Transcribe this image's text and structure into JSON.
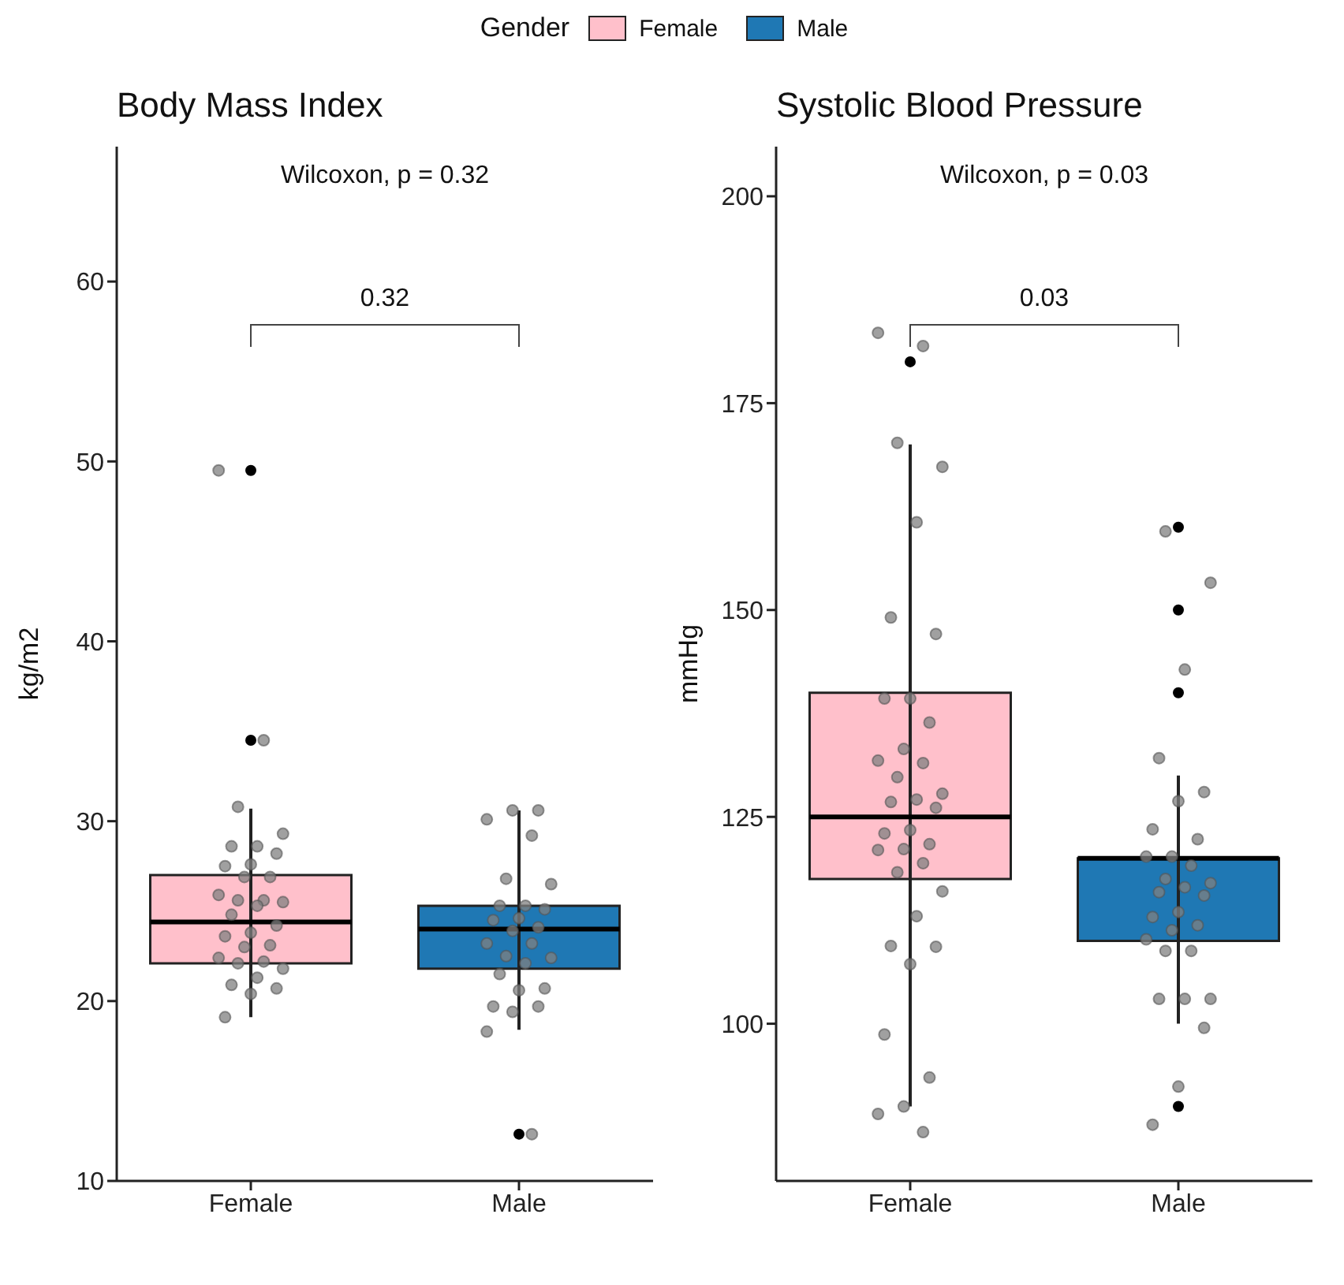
{
  "chart_data": [
    {
      "type": "box",
      "title": "Body Mass Index",
      "ylabel": "kg/m2",
      "categories": [
        "Female",
        "Male"
      ],
      "legend": "top",
      "legend_title": "Gender",
      "series": [
        {
          "name": "Female",
          "color": "#ffc0cb",
          "boxes": [
            {
              "low": 19.1,
              "q1": 22.1,
              "median": 24.4,
              "q3": 27.0,
              "high": 30.7,
              "outliers": [
                49.5,
                34.5
              ]
            },
            null
          ]
        },
        {
          "name": "Male",
          "color": "#1f78b4",
          "boxes": [
            null,
            {
              "low": 18.4,
              "q1": 21.8,
              "median": 24.0,
              "q3": 25.3,
              "high": 30.6,
              "outliers": [
                12.6
              ]
            }
          ]
        },
        {
          "type": "scatter",
          "color": "#808080",
          "x": [
            "Female",
            "Female",
            "Female",
            "Female",
            "Female",
            "Female",
            "Female",
            "Female",
            "Female",
            "Female",
            "Female",
            "Female",
            "Female",
            "Female",
            "Female",
            "Female",
            "Female",
            "Female",
            "Female",
            "Female",
            "Female",
            "Female",
            "Female",
            "Female",
            "Female",
            "Female",
            "Female",
            "Female",
            "Female",
            "Female",
            "Female",
            "Male",
            "Male",
            "Male",
            "Male",
            "Male",
            "Male",
            "Male",
            "Male",
            "Male",
            "Male",
            "Male",
            "Male",
            "Male",
            "Male",
            "Male",
            "Male",
            "Male",
            "Male",
            "Male",
            "Male",
            "Male",
            "Male",
            "Male",
            "Male",
            "Male",
            "Male"
          ],
          "values": [
            49.5,
            34.5,
            30.8,
            29.3,
            28.6,
            28.6,
            28.2,
            27.6,
            27.5,
            26.9,
            26.9,
            25.9,
            25.6,
            25.6,
            25.5,
            25.3,
            24.8,
            24.2,
            23.8,
            23.6,
            23.1,
            23.0,
            22.4,
            22.2,
            22.1,
            21.8,
            21.3,
            20.9,
            20.7,
            20.4,
            19.1,
            30.6,
            30.6,
            30.1,
            29.2,
            26.8,
            26.5,
            25.3,
            25.3,
            25.1,
            24.6,
            24.5,
            24.1,
            23.9,
            23.2,
            23.2,
            22.5,
            22.4,
            22.1,
            21.5,
            20.7,
            20.6,
            19.7,
            19.7,
            19.4,
            18.3,
            12.6
          ]
        }
      ],
      "ylim": [
        10,
        67.5
      ],
      "yticks": [
        10,
        20,
        30,
        40,
        50,
        60
      ],
      "annotations": [
        "Wilcoxon, p = 0.32",
        "0.32"
      ]
    },
    {
      "type": "box",
      "title": "Systolic Blood Pressure",
      "ylabel": "mmHg",
      "categories": [
        "Female",
        "Male"
      ],
      "series": [
        {
          "color": "#ffc0cb",
          "boxes": [
            {
              "low": 90,
              "q1": 117.5,
              "median": 125,
              "q3": 140,
              "high": 170,
              "outliers": [
                180
              ]
            },
            null
          ]
        },
        {
          "color": "#1f78b4",
          "boxes": [
            null,
            {
              "low": 100,
              "q1": 110,
              "median": 120,
              "q3": 120,
              "high": 130,
              "outliers": [
                160,
                150,
                140,
                90
              ]
            }
          ]
        },
        {
          "type": "scatter",
          "color": "#808080",
          "x": [
            "Female",
            "Female",
            "Female",
            "Female",
            "Female",
            "Female",
            "Female",
            "Female",
            "Female",
            "Female",
            "Female",
            "Female",
            "Female",
            "Female",
            "Female",
            "Female",
            "Female",
            "Female",
            "Female",
            "Female",
            "Female",
            "Female",
            "Female",
            "Female",
            "Female",
            "Female",
            "Female",
            "Female",
            "Female",
            "Female",
            "Female",
            "Female",
            "Female",
            "Female",
            "Female",
            "Male",
            "Male",
            "Male",
            "Male",
            "Male",
            "Male",
            "Male",
            "Male",
            "Male",
            "Male",
            "Male",
            "Male",
            "Male",
            "Male",
            "Male",
            "Male",
            "Male",
            "Male",
            "Male",
            "Male",
            "Male",
            "Male",
            "Male",
            "Male",
            "Male",
            "Male",
            "Male",
            "Male",
            "Male"
          ],
          "values": [
            183.5,
            181.9,
            170.2,
            167.3,
            160.6,
            149.1,
            147.1,
            139.3,
            139.3,
            136.4,
            133.2,
            131.8,
            131.5,
            129.8,
            127.8,
            127.1,
            126.8,
            126.1,
            123.4,
            123.0,
            121.7,
            121.1,
            121.0,
            119.4,
            118.3,
            116.0,
            113.0,
            109.4,
            109.3,
            107.2,
            98.7,
            93.5,
            90.0,
            89.1,
            86.9,
            159.5,
            153.3,
            142.8,
            132.1,
            128.0,
            126.9,
            123.5,
            122.3,
            120.2,
            120.2,
            119.1,
            117.5,
            117.0,
            116.5,
            115.9,
            115.5,
            113.5,
            112.9,
            111.9,
            111.3,
            110.2,
            108.8,
            108.8,
            103.0,
            103.0,
            103.0,
            99.5,
            92.4,
            87.8
          ]
        }
      ],
      "ylim": [
        81,
        206
      ],
      "yticks": [
        100,
        125,
        150,
        175,
        200
      ],
      "annotations": [
        "Wilcoxon, p = 0.03",
        "0.03"
      ]
    }
  ]
}
